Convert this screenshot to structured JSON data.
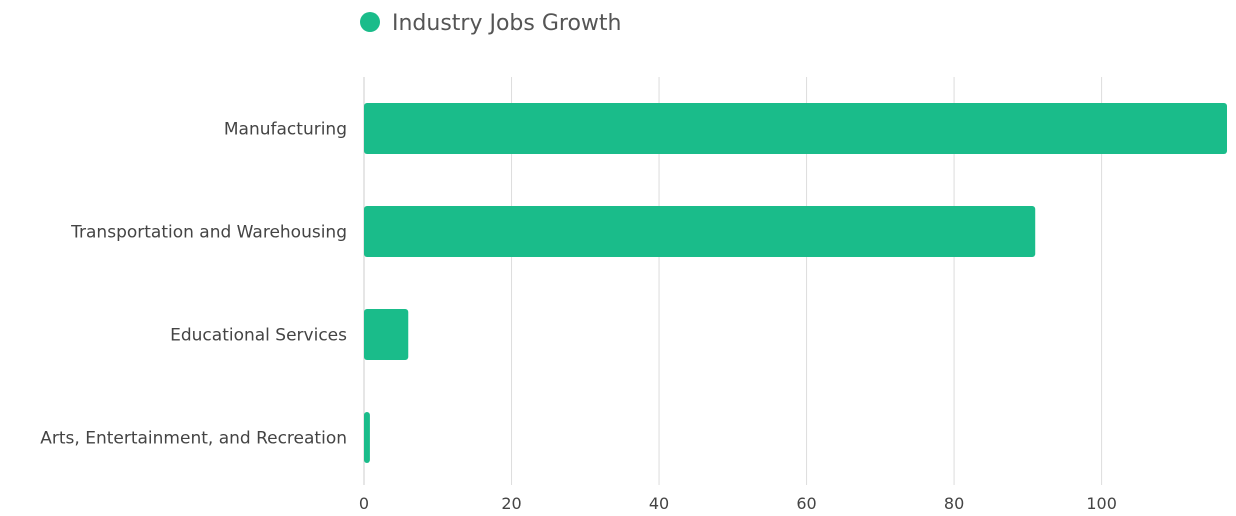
{
  "chart_data": {
    "type": "bar",
    "orientation": "horizontal",
    "categories": [
      "Manufacturing",
      "Transportation and Warehousing",
      "Educational Services",
      "Arts, Entertainment, and Recreation"
    ],
    "series": [
      {
        "name": "Industry Jobs Growth",
        "values": [
          117,
          91,
          6,
          0.8
        ]
      }
    ],
    "xlim": [
      0,
      117
    ],
    "xticks": [
      0,
      20,
      40,
      60,
      80,
      100
    ],
    "grid": true,
    "legend_position": "top"
  },
  "colors": {
    "bar": "#1ABC8A",
    "grid": "#dddddd",
    "axis": "#cccccc"
  }
}
